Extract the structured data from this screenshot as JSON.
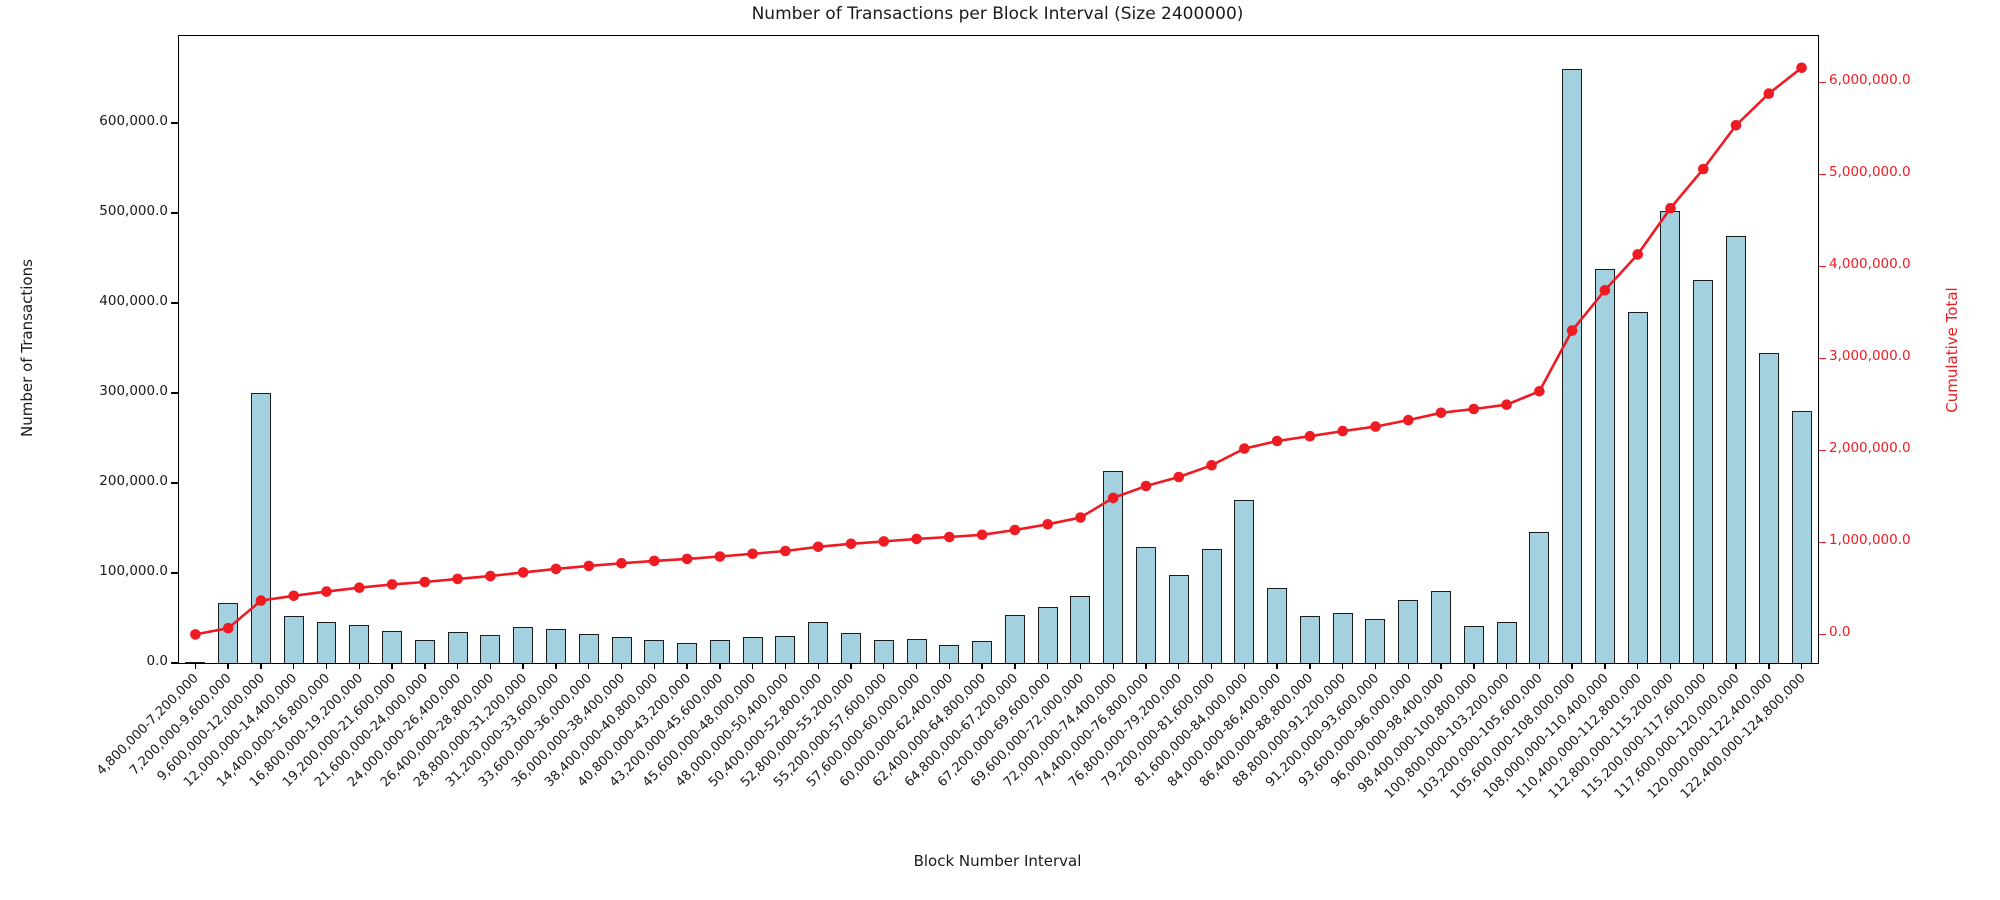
{
  "chart_data": {
    "type": "bar",
    "title": "Number of Transactions per Block Interval (Size 2400000)",
    "xlabel": "Block Number Interval",
    "ylabel_left": "Number of Transactions",
    "ylabel_right": "Cumulative Total",
    "grid": false,
    "legend": "none",
    "categories": [
      "4,800,000-7,200,000",
      "7,200,000-9,600,000",
      "9,600,000-12,000,000",
      "12,000,000-14,400,000",
      "14,400,000-16,800,000",
      "16,800,000-19,200,000",
      "19,200,000-21,600,000",
      "21,600,000-24,000,000",
      "24,000,000-26,400,000",
      "26,400,000-28,800,000",
      "28,800,000-31,200,000",
      "31,200,000-33,600,000",
      "33,600,000-36,000,000",
      "36,000,000-38,400,000",
      "38,400,000-40,800,000",
      "40,800,000-43,200,000",
      "43,200,000-45,600,000",
      "45,600,000-48,000,000",
      "48,000,000-50,400,000",
      "50,400,000-52,800,000",
      "52,800,000-55,200,000",
      "55,200,000-57,600,000",
      "57,600,000-60,000,000",
      "60,000,000-62,400,000",
      "62,400,000-64,800,000",
      "64,800,000-67,200,000",
      "67,200,000-69,600,000",
      "69,600,000-72,000,000",
      "72,000,000-74,400,000",
      "74,400,000-76,800,000",
      "76,800,000-79,200,000",
      "79,200,000-81,600,000",
      "81,600,000-84,000,000",
      "84,000,000-86,400,000",
      "86,400,000-88,800,000",
      "88,800,000-91,200,000",
      "91,200,000-93,600,000",
      "93,600,000-96,000,000",
      "96,000,000-98,400,000",
      "98,400,000-100,800,000",
      "100,800,000-103,200,000",
      "103,200,000-105,600,000",
      "105,600,000-108,000,000",
      "108,000,000-110,400,000",
      "110,400,000-112,800,000",
      "112,800,000-115,200,000",
      "115,200,000-117,600,000",
      "117,600,000-120,000,000",
      "120,000,000-122,400,000",
      "122,400,000-124,800,000"
    ],
    "series": [
      {
        "name": "Number of Transactions",
        "type": "bar",
        "values": [
          1000,
          67000,
          300000,
          52000,
          46000,
          42000,
          36000,
          26000,
          34000,
          31000,
          40000,
          38000,
          32000,
          29000,
          26000,
          22000,
          26000,
          29000,
          30000,
          46000,
          33000,
          26000,
          27000,
          20000,
          24000,
          53000,
          62000,
          74000,
          213000,
          129000,
          98000,
          127000,
          181000,
          83000,
          52000,
          56000,
          49000,
          70000,
          80000,
          41000,
          46000,
          146000,
          660000,
          438000,
          390000,
          502000,
          426000,
          475000,
          345000,
          280000
        ]
      },
      {
        "name": "Cumulative Total",
        "type": "line",
        "values": [
          1000,
          68000,
          368000,
          420000,
          466000,
          508000,
          544000,
          570000,
          604000,
          635000,
          675000,
          713000,
          745000,
          774000,
          800000,
          822000,
          848000,
          877000,
          907000,
          953000,
          986000,
          1012000,
          1039000,
          1059000,
          1083000,
          1136000,
          1198000,
          1272000,
          1485000,
          1614000,
          1712000,
          1839000,
          2020000,
          2103000,
          2155000,
          2211000,
          2260000,
          2330000,
          2410000,
          2451000,
          2497000,
          2643000,
          3303000,
          3741000,
          4131000,
          4633000,
          5059000,
          5534000,
          5879000,
          6159000
        ]
      }
    ],
    "left_axis": {
      "min": 0,
      "max": 696667,
      "ticks": [
        {
          "value": 0,
          "label": "0.0"
        },
        {
          "value": 100000,
          "label": "100,000.0"
        },
        {
          "value": 200000,
          "label": "200,000.0"
        },
        {
          "value": 300000,
          "label": "300,000.0"
        },
        {
          "value": 400000,
          "label": "400,000.0"
        },
        {
          "value": 500000,
          "label": "500,000.0"
        },
        {
          "value": 600000,
          "label": "600,000.0"
        }
      ]
    },
    "right_axis": {
      "min": -310000,
      "max": 6505000,
      "ticks": [
        {
          "value": 0,
          "label": "0.0"
        },
        {
          "value": 1000000,
          "label": "1,000,000.0"
        },
        {
          "value": 2000000,
          "label": "2,000,000.0"
        },
        {
          "value": 3000000,
          "label": "3,000,000.0"
        },
        {
          "value": 4000000,
          "label": "4,000,000.0"
        },
        {
          "value": 5000000,
          "label": "5,000,000.0"
        },
        {
          "value": 6000000,
          "label": "6,000,000.0"
        }
      ]
    },
    "colors": {
      "bar_fill": "#a4d1e0",
      "bar_edge": "#1c1c1c",
      "line": "#ee1b22",
      "right_axis_text": "#ee1b22",
      "text": "#1a1a1a",
      "background": "#ffffff"
    },
    "bar_width_fraction": 0.61
  }
}
